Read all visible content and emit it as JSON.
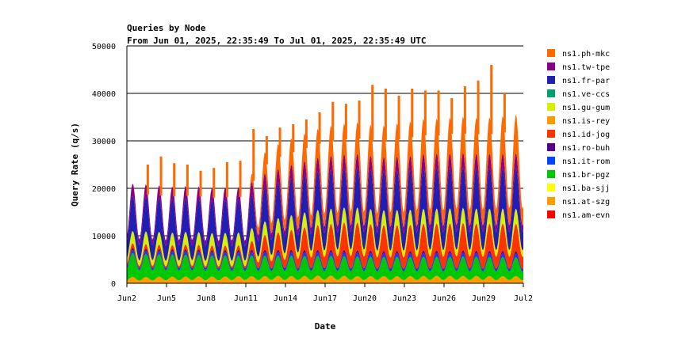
{
  "chart_data": {
    "type": "area",
    "stacked": true,
    "title": "Queries by Node",
    "subtitle": "From Jun 01, 2025, 22:35:49 To Jul 01, 2025, 22:35:49 UTC",
    "xlabel": "Date",
    "ylabel": "Query Rate (q/s)",
    "ylim": [
      0,
      50000
    ],
    "yticks": [
      "0",
      "10000",
      "20000",
      "30000",
      "40000",
      "50000"
    ],
    "xlim": [
      "Jun 2",
      "Jul 2"
    ],
    "xticks": [
      "Jun2",
      "Jun5",
      "Jun8",
      "Jun11",
      "Jun14",
      "Jun17",
      "Jun20",
      "Jun23",
      "Jun26",
      "Jun29",
      "Jul2"
    ],
    "grid": "horizontal",
    "legend_position": "right",
    "legend": [
      "ns1.ph-mkc",
      "ns1.tw-tpe",
      "ns1.fr-par",
      "ns1.ve-ccs",
      "ns1.gu-gum",
      "ns1.is-rey",
      "ns1.id-jog",
      "ns1.ro-buh",
      "ns1.it-rom",
      "ns1.br-pgz",
      "ns1.ba-sjj",
      "ns1.at-szg",
      "ns1.am-evn"
    ],
    "colors": [
      "#ff6a00",
      "#8b008b",
      "#1f1fb4",
      "#00a070",
      "#d8f000",
      "#ff9900",
      "#ff3300",
      "#5a0090",
      "#0044ff",
      "#00c800",
      "#ffff00",
      "#ff9c00",
      "#ff0000"
    ],
    "x_days": [
      0,
      1,
      2,
      3,
      4,
      5,
      6,
      7,
      8,
      9,
      10,
      11,
      12,
      13,
      14,
      15,
      16,
      17,
      18,
      19,
      20,
      21,
      22,
      23,
      24,
      25,
      26,
      27,
      28,
      29,
      30
    ],
    "series": [
      {
        "name": "ns1.at-szg",
        "values": [
          1200,
          1150,
          1200,
          1250,
          1200,
          1300,
          1250,
          1250,
          1300,
          1350,
          1300,
          1400,
          1350,
          1350,
          1400,
          1450,
          1400,
          1350,
          1300,
          1350,
          1300,
          1300,
          1350,
          1400,
          1350,
          1400,
          1350,
          1400,
          1300,
          1350,
          1300
        ]
      },
      {
        "name": "ns1.br-pgz",
        "values": [
          4500,
          4300,
          4200,
          4100,
          4100,
          4000,
          3900,
          3900,
          3800,
          3800,
          3800,
          3700,
          3800,
          3700,
          3700,
          3600,
          3700,
          3600,
          3700,
          3500,
          3600,
          3600,
          3500,
          3600,
          3500,
          3600,
          3600,
          3500,
          3600,
          3500,
          3500
        ]
      },
      {
        "name": "ns1.it-rom",
        "values": [
          600,
          600,
          600,
          600,
          650,
          600,
          650,
          600,
          650,
          650,
          700,
          650,
          700,
          650,
          650,
          700,
          650,
          700,
          700,
          650,
          700,
          650,
          700,
          700,
          650,
          700,
          650,
          700,
          650,
          700,
          650
        ]
      },
      {
        "name": "ns1.ro-buh",
        "values": [
          400,
          400,
          400,
          400,
          400,
          450,
          400,
          400,
          450,
          450,
          450,
          450,
          450,
          450,
          500,
          450,
          500,
          450,
          500,
          450,
          500,
          450,
          500,
          450,
          500,
          450,
          500,
          450,
          500,
          450,
          500
        ]
      },
      {
        "name": "ns1.id-jog",
        "values": [
          900,
          800,
          900,
          700,
          800,
          900,
          800,
          900,
          800,
          900,
          2500,
          3000,
          3500,
          4000,
          4500,
          4700,
          5000,
          5200,
          5000,
          4800,
          4700,
          4800,
          4900,
          5000,
          5000,
          5100,
          5000,
          5000,
          5000,
          5100,
          5000
        ]
      },
      {
        "name": "ns1.gu-gum",
        "values": [
          2200,
          2300,
          2400,
          2300,
          2300,
          2400,
          2300,
          2300,
          2400,
          2300,
          2500,
          2600,
          2700,
          2700,
          2800,
          2800,
          2800,
          2800,
          2800,
          2800,
          2800,
          2800,
          2800,
          2800,
          2800,
          2800,
          2800,
          2800,
          2800,
          2800,
          2800
        ]
      },
      {
        "name": "ns1.fr-par",
        "values": [
          6500,
          6400,
          6300,
          6200,
          6200,
          6100,
          6100,
          6000,
          6100,
          6000,
          6300,
          6500,
          6700,
          6900,
          7000,
          7200,
          7200,
          7300,
          7300,
          7200,
          7300,
          7200,
          7400,
          7500,
          7400,
          7500,
          7400,
          7500,
          7400,
          7500,
          7500
        ]
      },
      {
        "name": "ns1.tw-tpe",
        "values": [
          2300,
          2400,
          2300,
          2400,
          2300,
          2400,
          2300,
          2300,
          2400,
          2300,
          2500,
          2500,
          2600,
          2600,
          2600,
          2700,
          2600,
          2700,
          2700,
          2600,
          2700,
          2700,
          2700,
          2800,
          2700,
          2800,
          2700,
          2800,
          2700,
          2800,
          2800
        ]
      },
      {
        "name": "ns1.ph-mkc",
        "values": [
          0,
          0,
          0,
          0,
          0,
          0,
          0,
          0,
          0,
          0,
          3500,
          4500,
          4800,
          5000,
          5200,
          5500,
          5600,
          5800,
          5800,
          5700,
          6000,
          6200,
          6600,
          6400,
          6500,
          6800,
          6600,
          6700,
          6800,
          7200,
          7000
        ]
      }
    ],
    "peak_values": [
      25000,
      26700,
      25300,
      25000,
      23700,
      24300,
      25500,
      25800,
      32500,
      31000,
      32800,
      33500,
      34500,
      36000,
      38200,
      37800,
      38500,
      41800,
      41000,
      39500,
      41000,
      40600,
      40600,
      39000,
      41500,
      42700,
      46000,
      40000
    ]
  }
}
